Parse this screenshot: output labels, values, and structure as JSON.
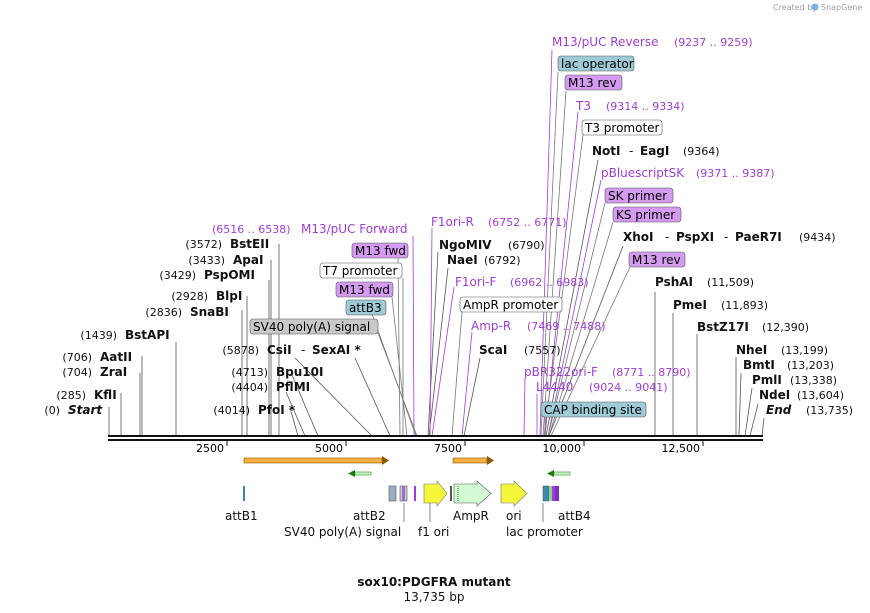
{
  "header": {
    "created_by": "Created by",
    "brand": "SnapGene"
  },
  "title": "sox10:PDGFRA mutant",
  "subtitle": "13,735 bp",
  "ruler": {
    "length": 13735,
    "ticks": [
      "2500",
      "5000",
      "7500",
      "10,000",
      "12,500"
    ],
    "tick_values": [
      2500,
      5000,
      7500,
      10000,
      12500
    ]
  },
  "left_sites": [
    {
      "pos": "(0)",
      "name": "Start",
      "italic": true
    },
    {
      "pos": "(285)",
      "name": "KflI"
    },
    {
      "pos": "(704)",
      "name": "ZraI"
    },
    {
      "pos": "(706)",
      "name": "AatII"
    },
    {
      "pos": "(1439)",
      "name": "BstAPI"
    },
    {
      "pos": "(2836)",
      "name": "SnaBI"
    },
    {
      "pos": "(2928)",
      "name": "BlpI"
    },
    {
      "pos": "(3429)",
      "name": "PspOMI"
    },
    {
      "pos": "(3433)",
      "name": "ApaI"
    },
    {
      "pos": "(3572)",
      "name": "BstEII"
    }
  ],
  "mid_sites": [
    {
      "pos": "(4014)",
      "name": "PfoI *"
    },
    {
      "pos": "(4404)",
      "name": "PflMI"
    },
    {
      "pos": "(4713)",
      "name": "Bpu10I"
    },
    {
      "pos": "(5878)",
      "name": "CsiI",
      "name2": "SexAI *"
    }
  ],
  "center_sites": [
    {
      "name": "NgoMIV",
      "pos": "(6790)"
    },
    {
      "name": "NaeI",
      "pos": "(6792)"
    },
    {
      "name": "ScaI",
      "pos": "(7557)"
    }
  ],
  "right_sites": [
    {
      "name": "NotI",
      "name2": "EagI",
      "pos": "(9364)"
    },
    {
      "name": "XhoI",
      "name2": "PspXI",
      "name3": "PaeR7I",
      "pos": "(9434)"
    },
    {
      "name": "PshAI",
      "pos": "(11,509)"
    },
    {
      "name": "PmeI",
      "pos": "(11,893)"
    },
    {
      "name": "BstZ17I",
      "pos": "(12,390)"
    },
    {
      "name": "NheI",
      "pos": "(13,199)"
    },
    {
      "name": "BmtI",
      "pos": "(13,203)"
    },
    {
      "name": "PmlI",
      "pos": "(13,338)"
    },
    {
      "name": "NdeI",
      "pos": "(13,604)"
    },
    {
      "name": "End",
      "pos": "(13,735)",
      "italic": true
    }
  ],
  "primers": [
    {
      "name": "M13/pUC Reverse",
      "pos": "(9237 .. 9259)"
    },
    {
      "name": "T3",
      "pos": "(9314 .. 9334)"
    },
    {
      "name": "pBluescriptSK",
      "pos": "(9371 .. 9387)"
    },
    {
      "name": "M13/pUC Forward",
      "pos": "(6516 .. 6538)"
    },
    {
      "name": "F1ori-R",
      "pos": "(6752 .. 6771)"
    },
    {
      "name": "F1ori-F",
      "pos": "(6962 .. 6983)"
    },
    {
      "name": "Amp-R",
      "pos": "(7469 .. 7488)"
    },
    {
      "name": "pBR322ori-F",
      "pos": "(8771 .. 8790)"
    },
    {
      "name": "L4440",
      "pos": "(9024 .. 9041)"
    }
  ],
  "boxes": [
    {
      "label": "lac operator"
    },
    {
      "label": "M13 rev"
    },
    {
      "label": "T3 promoter"
    },
    {
      "label": "SK primer"
    },
    {
      "label": "KS primer"
    },
    {
      "label": "M13 rev"
    },
    {
      "label": "M13 fwd"
    },
    {
      "label": "T7 promoter"
    },
    {
      "label": "M13 fwd"
    },
    {
      "label": "attB3"
    },
    {
      "label": "SV40 poly(A) signal"
    },
    {
      "label": "AmpR promoter"
    },
    {
      "label": "CAP binding site"
    }
  ],
  "feature_labels": [
    {
      "text": "attB1"
    },
    {
      "text": "attB2"
    },
    {
      "text": "SV40 poly(A) signal"
    },
    {
      "text": "f1 ori"
    },
    {
      "text": "AmpR"
    },
    {
      "text": "ori"
    },
    {
      "text": "lac promoter"
    },
    {
      "text": "attB4"
    }
  ],
  "colors": {
    "primer": "#9e3fd0",
    "box_magenta": "#d59bf0",
    "box_teal": "#9ecbd6",
    "box_gray": "#c9c9c9",
    "orange": "#f5b041",
    "yellow": "#f5f53a",
    "green": "#c8f7c5"
  }
}
